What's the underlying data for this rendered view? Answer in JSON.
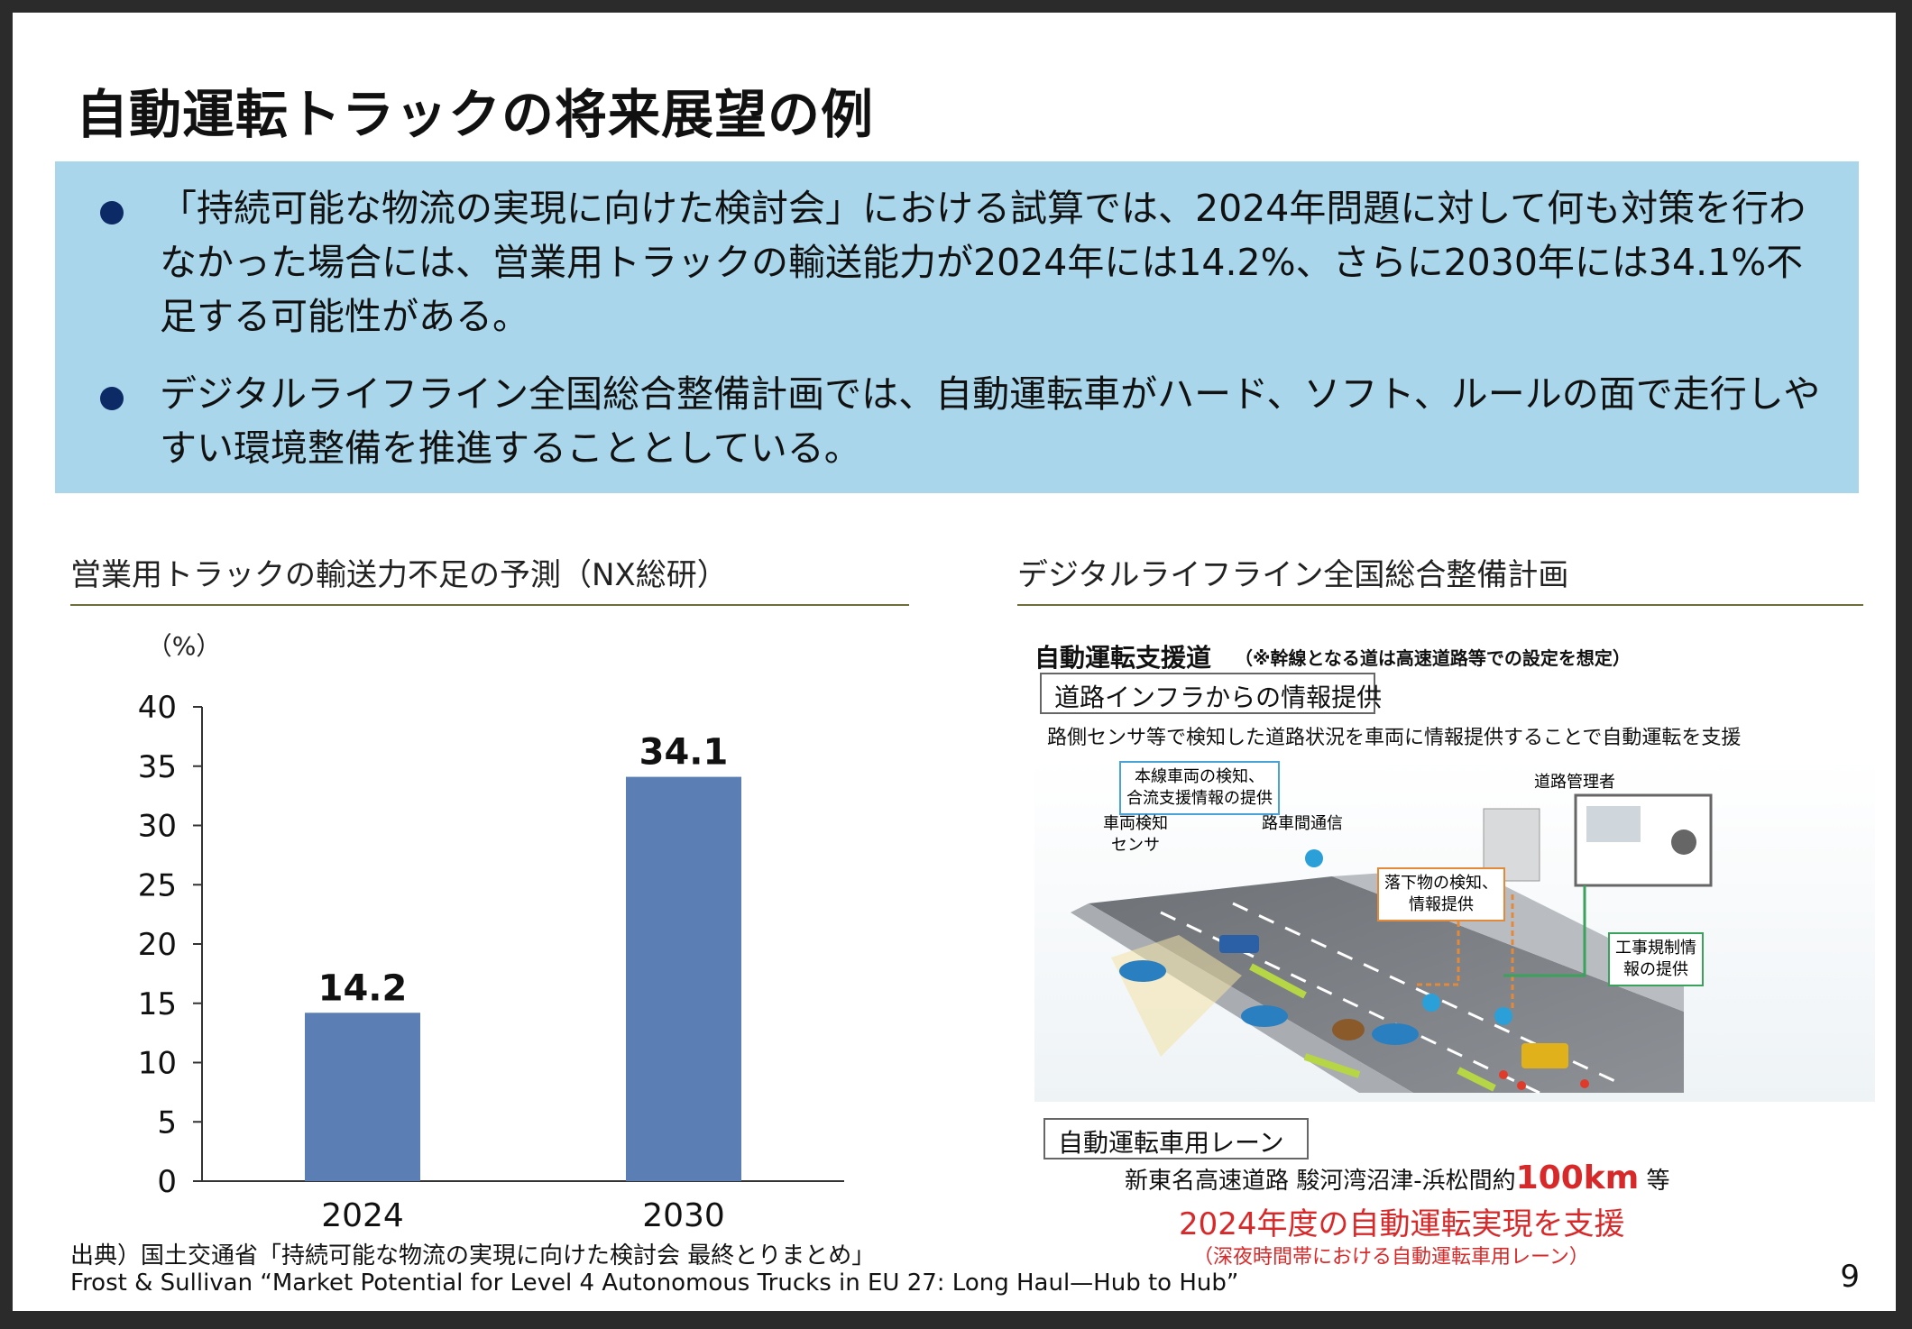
{
  "title": "自動運転トラックの将来展望の例",
  "bullets": [
    "「持続可能な物流の実現に向けた検討会」における試算では、2024年問題に対して何も対策を行わなかった場合には、営業用トラックの輸送能力が2024年には14.2%、さらに2030年には34.1%不足する可能性がある。",
    "デジタルライフライン全国総合整備計画では、自動運転車がハード、ソフト、ルールの面で走行しやすい環境整備を推進することとしている。"
  ],
  "left_panel": {
    "title": "営業用トラックの輸送力不足の予測（NX総研）"
  },
  "right_panel": {
    "title": "デジタルライフライン全国総合整備計画"
  },
  "chart_data": {
    "type": "bar",
    "categories": [
      "2024",
      "2030"
    ],
    "values": [
      14.2,
      34.1
    ],
    "value_labels": [
      "14.2",
      "34.1"
    ],
    "unit_label": "（%）",
    "ylim": [
      0,
      40
    ],
    "yticks": [
      0,
      5,
      10,
      15,
      20,
      25,
      30,
      35,
      40
    ],
    "bar_color": "#5b7fb5",
    "grid": false
  },
  "diagram": {
    "heading": "自動運転支援道",
    "heading_note": "（※幹線となる道は高速道路等での設定を想定）",
    "box1": "道路インフラからの情報提供",
    "sub1": "路側センサ等で検知した道路状況を車両に情報提供することで自動運転を支援",
    "callouts": {
      "merge": "本線車両の検知、\n合流支援情報の提供",
      "sensor": "車両検知\nセンサ",
      "v2i": "路車間通信",
      "manager": "道路管理者",
      "debris": "落下物の検知、\n情報提供",
      "construction": "工事規制情\n報の提供"
    },
    "box2": "自動運転車用レーン",
    "route_prefix": "新東名高速道路 駿河湾沼津-浜松間約",
    "route_distance": "100km",
    "route_suffix": "等",
    "support": "2024年度の自動運転実現を支援",
    "support_note": "（深夜時間帯における自動運転車用レーン）"
  },
  "sources": [
    "出典）国土交通省「持続可能な物流の実現に向けた検討会 最終とりまとめ」",
    "Frost & Sullivan “Market Potential for Level 4 Autonomous Trucks in EU 27: Long Haul—Hub to Hub”"
  ],
  "page_number": "9"
}
